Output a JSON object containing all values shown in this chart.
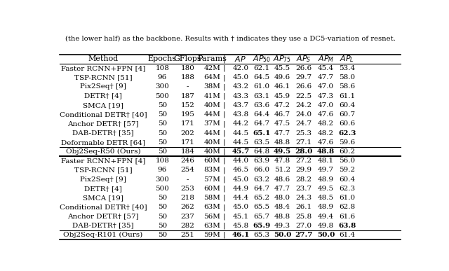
{
  "title_text": "(the lower half) as the backbone. Results with † indicates they use a DC5-variation of resnet.",
  "section1_rows": [
    [
      "Faster RCNN+FPN [4]",
      "108",
      "180",
      "42M",
      "42.0",
      "62.1",
      "45.5",
      "26.6",
      "45.4",
      "53.4"
    ],
    [
      "TSP-RCNN [51]",
      "96",
      "188",
      "64M",
      "45.0",
      "64.5",
      "49.6",
      "29.7",
      "47.7",
      "58.0"
    ],
    [
      "Pix2Seq† [9]",
      "300",
      "-",
      "38M",
      "43.2",
      "61.0",
      "46.1",
      "26.6",
      "47.0",
      "58.6"
    ],
    [
      "DETR† [4]",
      "500",
      "187",
      "41M",
      "43.3",
      "63.1",
      "45.9",
      "22.5",
      "47.3",
      "61.1"
    ],
    [
      "SMCA [19]",
      "50",
      "152",
      "40M",
      "43.7",
      "63.6",
      "47.2",
      "24.2",
      "47.0",
      "60.4"
    ],
    [
      "Conditional DETR† [40]",
      "50",
      "195",
      "44M",
      "43.8",
      "64.4",
      "46.7",
      "24.0",
      "47.6",
      "60.7"
    ],
    [
      "Anchor DETR† [57]",
      "50",
      "171",
      "37M",
      "44.2",
      "64.7",
      "47.5",
      "24.7",
      "48.2",
      "60.6"
    ],
    [
      "DAB-DETR† [35]",
      "50",
      "202",
      "44M",
      "44.5",
      "65.1",
      "47.7",
      "25.3",
      "48.2",
      "62.3"
    ],
    [
      "Deformable DETR [64]",
      "50",
      "171",
      "40M",
      "44.5",
      "63.5",
      "48.8",
      "27.1",
      "47.6",
      "59.6"
    ]
  ],
  "section1_bold": {
    "DAB-DETR† [35]": [
      "AP50",
      "APL"
    ]
  },
  "section1_ours": [
    "Obj2Seq-R50 (Ours)",
    "50",
    "184",
    "40M",
    "45.7",
    "64.8",
    "49.5",
    "28.0",
    "48.8",
    "60.2"
  ],
  "section1_ours_bold": [
    "AP",
    "AP75",
    "APS",
    "APM"
  ],
  "section2_rows": [
    [
      "Faster RCNN+FPN [4]",
      "108",
      "246",
      "60M",
      "44.0",
      "63.9",
      "47.8",
      "27.2",
      "48.1",
      "56.0"
    ],
    [
      "TSP-RCNN [51]",
      "96",
      "254",
      "83M",
      "46.5",
      "66.0",
      "51.2",
      "29.9",
      "49.7",
      "59.2"
    ],
    [
      "Pix2Seq† [9]",
      "300",
      "-",
      "57M",
      "45.0",
      "63.2",
      "48.6",
      "28.2",
      "48.9",
      "60.4"
    ],
    [
      "DETR† [4]",
      "500",
      "253",
      "60M",
      "44.9",
      "64.7",
      "47.7",
      "23.7",
      "49.5",
      "62.3"
    ],
    [
      "SMCA [19]",
      "50",
      "218",
      "58M",
      "44.4",
      "65.2",
      "48.0",
      "24.3",
      "48.5",
      "61.0"
    ],
    [
      "Conditional DETR† [40]",
      "50",
      "262",
      "63M",
      "45.0",
      "65.5",
      "48.4",
      "26.1",
      "48.9",
      "62.8"
    ],
    [
      "Anchor DETR† [57]",
      "50",
      "237",
      "56M",
      "45.1",
      "65.7",
      "48.8",
      "25.8",
      "49.4",
      "61.6"
    ],
    [
      "DAB-DETR† [35]",
      "50",
      "282",
      "63M",
      "45.8",
      "65.9",
      "49.3",
      "27.0",
      "49.8",
      "63.8"
    ]
  ],
  "section2_bold": {
    "DAB-DETR† [35]": [
      "AP50",
      "APL"
    ]
  },
  "section2_ours": [
    "Obj2Seq-R101 (Ours)",
    "50",
    "251",
    "59M",
    "46.1",
    "65.3",
    "50.0",
    "27.7",
    "50.0",
    "61.4"
  ],
  "section2_ours_bold": [
    "AP",
    "AP75",
    "APS",
    "APM"
  ],
  "col_keys": [
    "Method",
    "Epochs",
    "GFlops",
    "Params",
    "AP",
    "AP50",
    "AP75",
    "APS",
    "APM",
    "APL"
  ],
  "col_headers_display": [
    "Method",
    "Epochs",
    "GFlops",
    "Params",
    "AP",
    "AP_{50}",
    "AP_{75}",
    "AP_S",
    "AP_M",
    "AP_L"
  ],
  "bg_color": "#ffffff"
}
